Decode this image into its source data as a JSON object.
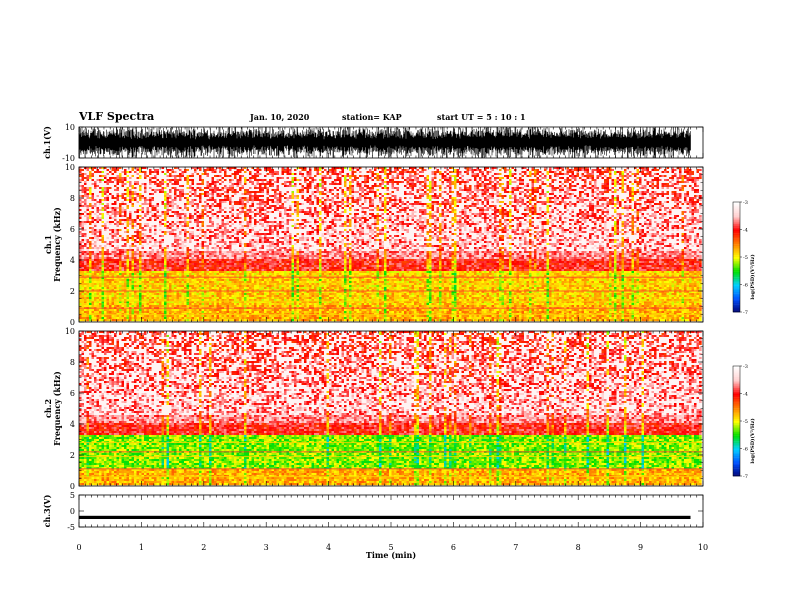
{
  "header": {
    "title": "VLF Spectra",
    "date": "Jan. 10, 2020",
    "station": "station= KAP",
    "start": "start  UT =  5 : 10 : 1"
  },
  "chart_data": [
    {
      "type": "line",
      "panel": "ch1-waveform",
      "ylabel": "ch.1(V)",
      "ylim": [
        -10,
        10
      ],
      "y_ticks": [
        "10",
        "-10"
      ],
      "xlim": [
        0,
        10
      ],
      "data_extent_x": [
        0,
        9.8
      ]
    },
    {
      "type": "heatmap",
      "panel": "ch1-spectrogram",
      "ylabel_line1": "ch.1",
      "ylabel_line2": "Frequency (kHz)",
      "ylim": [
        0,
        10
      ],
      "y_ticks": [
        "0",
        "2",
        "4",
        "6",
        "8",
        "10"
      ],
      "xlim": [
        0,
        10
      ],
      "colorbar": {
        "label": "log(PSD)(V²/Hz)",
        "range": [
          -7,
          -3
        ],
        "ticks": [
          "-3",
          "-4",
          "-5",
          "-6",
          "-7"
        ],
        "colors": [
          "#000070",
          "#0050ff",
          "#00d0ff",
          "#00e000",
          "#ffff00",
          "#ff8000",
          "#ff0000",
          "#ffd0d0",
          "#ffffff"
        ]
      }
    },
    {
      "type": "heatmap",
      "panel": "ch2-spectrogram",
      "ylabel_line1": "ch.2",
      "ylabel_line2": "Frequency (kHz)",
      "ylim": [
        0,
        10
      ],
      "y_ticks": [
        "0",
        "2",
        "4",
        "6",
        "8",
        "10"
      ],
      "xlim": [
        0,
        10
      ],
      "colorbar": {
        "label": "log(PSD)(V²/Hz)",
        "range": [
          -7,
          -3
        ],
        "ticks": [
          "-3",
          "-4",
          "-5",
          "-6",
          "-7"
        ],
        "colors": [
          "#000070",
          "#0050ff",
          "#00d0ff",
          "#00e000",
          "#ffff00",
          "#ff8000",
          "#ff0000",
          "#ffd0d0",
          "#ffffff"
        ]
      }
    },
    {
      "type": "line",
      "panel": "ch3-waveform",
      "ylabel": "ch.3(V)",
      "ylim": [
        -5,
        5
      ],
      "y_ticks": [
        "5",
        "0",
        "-5"
      ],
      "xlim": [
        0,
        10
      ],
      "data_extent_x": [
        0,
        9.8
      ],
      "xlabel": "Time (min)",
      "x_ticks": [
        "0",
        "1",
        "2",
        "3",
        "4",
        "5",
        "6",
        "7",
        "8",
        "9",
        "10"
      ]
    }
  ]
}
